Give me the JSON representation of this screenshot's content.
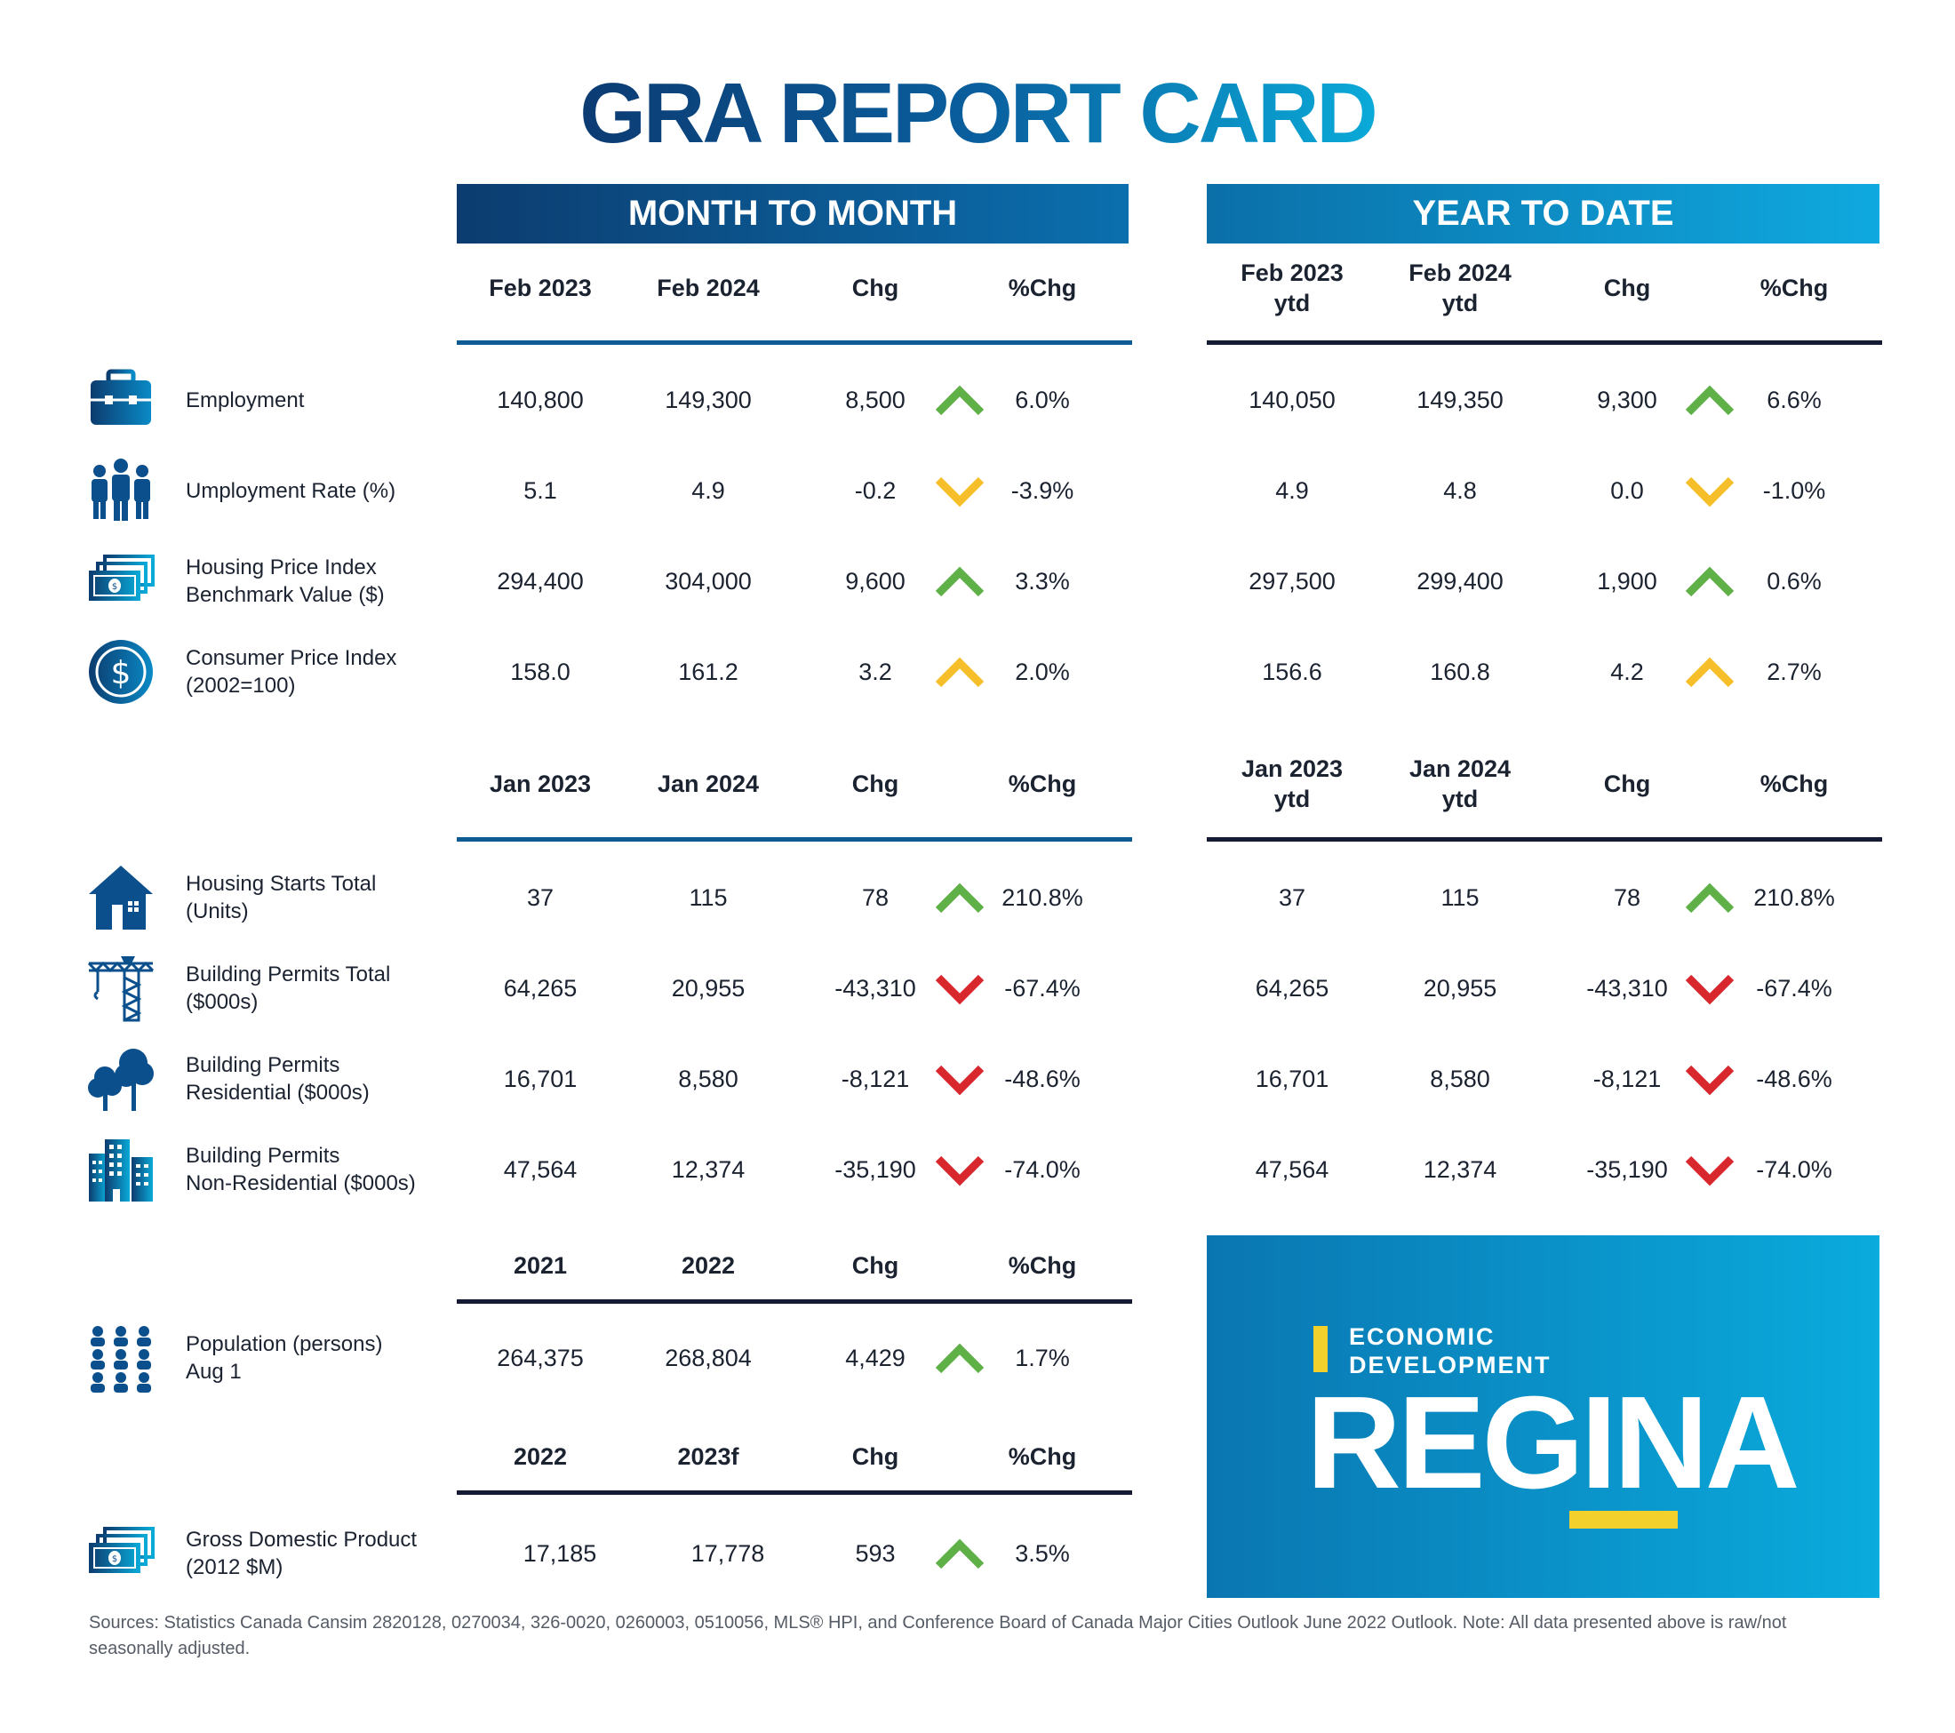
{
  "title": "GRA REPORT CARD",
  "banners": {
    "mtm": "MONTH TO MONTH",
    "ytd": "YEAR TO DATE"
  },
  "colors": {
    "up": "#5fb047",
    "down": "#d9272e",
    "neutral": "#f6bf2a",
    "navy": "#0c3c6f",
    "cyan": "#0aaad8"
  },
  "sections": [
    {
      "mtm_headers": [
        "Feb 2023",
        "Feb 2024",
        "Chg",
        "%Chg"
      ],
      "ytd_headers": [
        "Feb 2023\nytd",
        "Feb 2024\nytd",
        "Chg",
        "%Chg"
      ],
      "rows": [
        {
          "icon": "briefcase-icon",
          "label": "Employment",
          "mtm": [
            "140,800",
            "149,300",
            "8,500",
            "6.0%"
          ],
          "mtm_trend": "up-green",
          "ytd": [
            "140,050",
            "149,350",
            "9,300",
            "6.6%"
          ],
          "ytd_trend": "up-green"
        },
        {
          "icon": "people-icon",
          "label": "Umployment Rate (%)",
          "mtm": [
            "5.1",
            "4.9",
            "-0.2",
            "-3.9%"
          ],
          "mtm_trend": "down-yellow",
          "ytd": [
            "4.9",
            "4.8",
            "0.0",
            "-1.0%"
          ],
          "ytd_trend": "down-yellow"
        },
        {
          "icon": "banknotes-icon",
          "label": "Housing Price Index\nBenchmark Value ($)",
          "mtm": [
            "294,400",
            "304,000",
            "9,600",
            "3.3%"
          ],
          "mtm_trend": "up-green",
          "ytd": [
            "297,500",
            "299,400",
            "1,900",
            "0.6%"
          ],
          "ytd_trend": "up-green"
        },
        {
          "icon": "dollar-coin-icon",
          "label": "Consumer Price Index\n(2002=100)",
          "mtm": [
            "158.0",
            "161.2",
            "3.2",
            "2.0%"
          ],
          "mtm_trend": "up-yellow",
          "ytd": [
            "156.6",
            "160.8",
            "4.2",
            "2.7%"
          ],
          "ytd_trend": "up-yellow"
        }
      ]
    },
    {
      "mtm_headers": [
        "Jan 2023",
        "Jan 2024",
        "Chg",
        "%Chg"
      ],
      "ytd_headers": [
        "Jan 2023\nytd",
        "Jan 2024\nytd",
        "Chg",
        "%Chg"
      ],
      "rows": [
        {
          "icon": "house-icon",
          "label": "Housing Starts Total\n(Units)",
          "mtm": [
            "37",
            "115",
            "78",
            "210.8%"
          ],
          "mtm_trend": "up-green",
          "ytd": [
            "37",
            "115",
            "78",
            "210.8%"
          ],
          "ytd_trend": "up-green"
        },
        {
          "icon": "crane-icon",
          "label": "Building Permits Total\n($000s)",
          "mtm": [
            "64,265",
            "20,955",
            "-43,310",
            "-67.4%"
          ],
          "mtm_trend": "down-red",
          "ytd": [
            "64,265",
            "20,955",
            "-43,310",
            "-67.4%"
          ],
          "ytd_trend": "down-red"
        },
        {
          "icon": "trees-icon",
          "label": "Building Permits\nResidential ($000s)",
          "mtm": [
            "16,701",
            "8,580",
            "-8,121",
            "-48.6%"
          ],
          "mtm_trend": "down-red",
          "ytd": [
            "16,701",
            "8,580",
            "-8,121",
            "-48.6%"
          ],
          "ytd_trend": "down-red"
        },
        {
          "icon": "buildings-icon",
          "label": "Building Permits\nNon-Residential ($000s)",
          "mtm": [
            "47,564",
            "12,374",
            "-35,190",
            "-74.0%"
          ],
          "mtm_trend": "down-red",
          "ytd": [
            "47,564",
            "12,374",
            "-35,190",
            "-74.0%"
          ],
          "ytd_trend": "down-red"
        }
      ]
    },
    {
      "mtm_headers": [
        "2021",
        "2022",
        "Chg",
        "%Chg"
      ],
      "rows": [
        {
          "icon": "population-icon",
          "label": "Population (persons)\nAug 1",
          "mtm": [
            "264,375",
            "268,804",
            "4,429",
            "1.7%"
          ],
          "mtm_trend": "up-green"
        }
      ]
    },
    {
      "mtm_headers": [
        "2022",
        "2023f",
        "Chg",
        "%Chg"
      ],
      "rows": [
        {
          "icon": "banknotes-icon",
          "label": "Gross Domestic Product\n(2012 $M)",
          "mtm": [
            "17,185",
            "17,778",
            "593",
            "3.5%"
          ],
          "mtm_trend": "up-green"
        }
      ]
    }
  ],
  "logo": {
    "line1": "ECONOMIC\nDEVELOPMENT",
    "line2": "REGINA"
  },
  "sources": "Sources: Statistics Canada Cansim 2820128, 0270034, 326-0020, 0260003, 0510056, MLS® HPI, and Conference Board of Canada Major Cities Outlook June 2022 Outlook. Note: All data presented above is raw/not seasonally adjusted."
}
